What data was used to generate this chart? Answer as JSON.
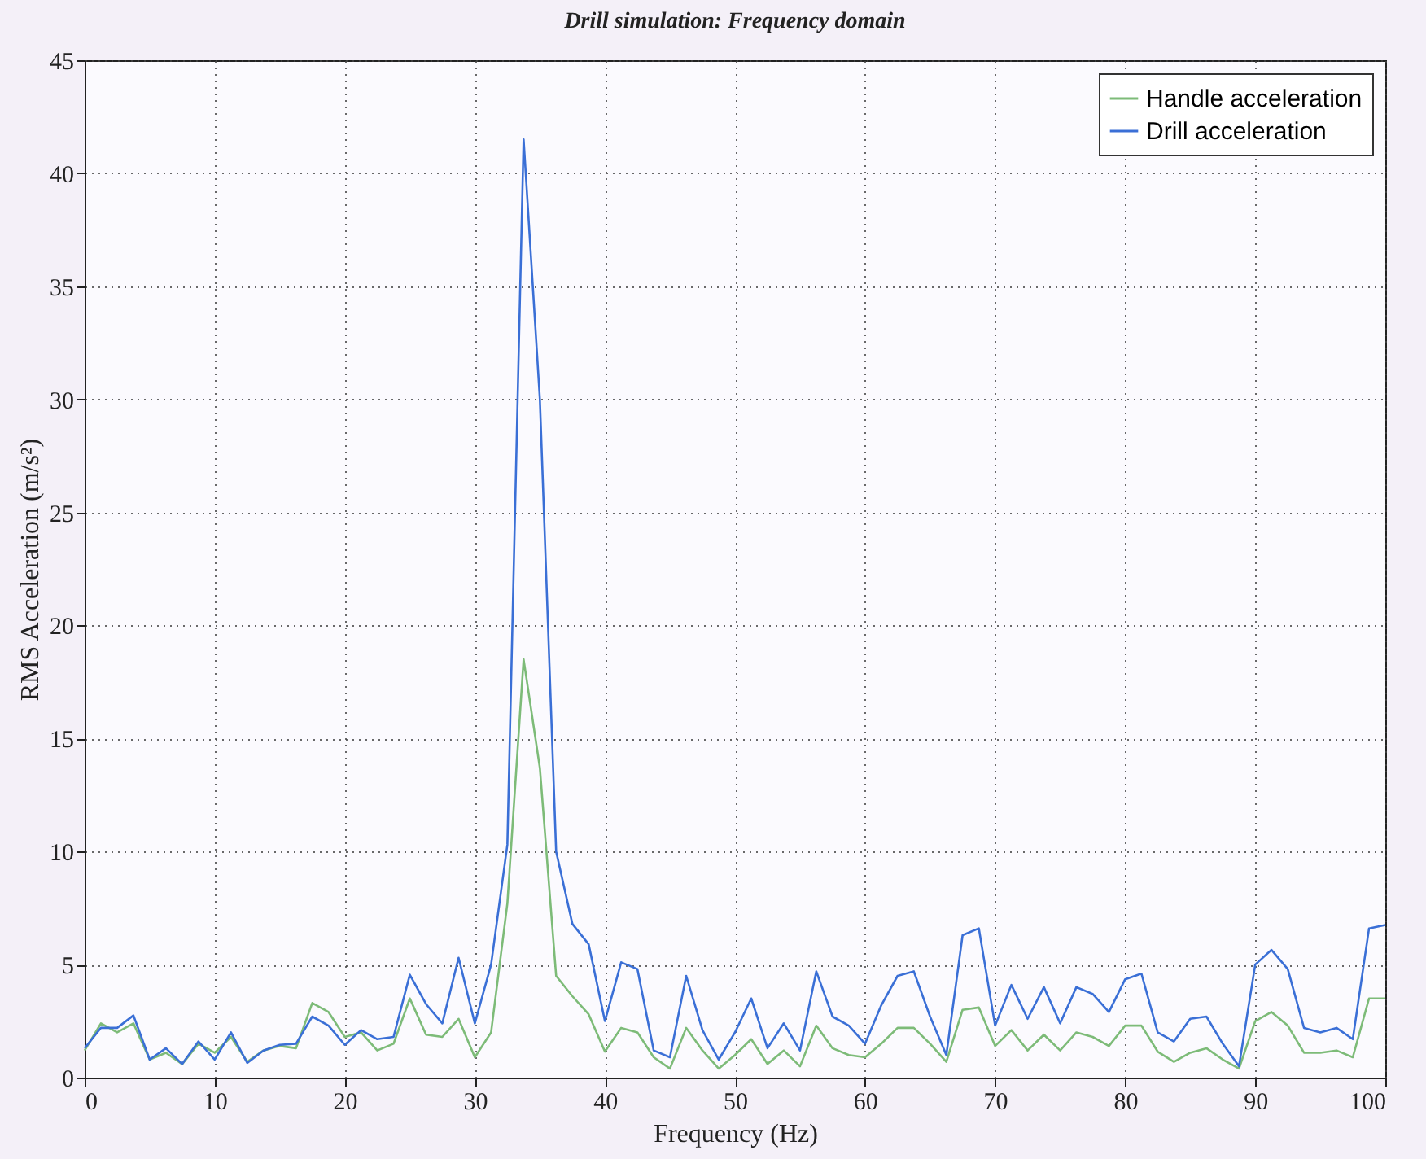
{
  "chart_data": {
    "type": "line",
    "title": "Drill simulation: Frequency domain",
    "xlabel": "Frequency (Hz)",
    "ylabel": "RMS Acceleration (m/s²)",
    "x": [
      0,
      1.25,
      2.5,
      3.75,
      5,
      6.25,
      7.5,
      8.75,
      10,
      11.25,
      12.5,
      13.75,
      15,
      16.25,
      17.5,
      18.75,
      20,
      21.25,
      22.5,
      23.75,
      25,
      26.25,
      27.5,
      28.75,
      30,
      31.25,
      32.5,
      33.75,
      35,
      36.25,
      37.5,
      38.75,
      40,
      41.25,
      42.5,
      43.75,
      45,
      46.25,
      47.5,
      48.75,
      50,
      51.25,
      52.5,
      53.75,
      55,
      56.25,
      57.5,
      58.75,
      60,
      61.25,
      62.5,
      63.75,
      65,
      66.25,
      67.5,
      68.75,
      70,
      71.25,
      72.5,
      73.75,
      75,
      76.25,
      77.5,
      78.75,
      80,
      81.25,
      82.5,
      83.75,
      85,
      86.25,
      87.5,
      88.75,
      90,
      91.25,
      92.5,
      93.75,
      95,
      96.25,
      97.5,
      98.75,
      100
    ],
    "series": [
      {
        "name": "Handle acceleration",
        "color": "#7dbb78",
        "values": [
          1.2,
          2.4,
          2.0,
          2.4,
          0.8,
          1.1,
          0.6,
          1.5,
          1.1,
          1.8,
          0.7,
          1.2,
          1.4,
          1.3,
          3.3,
          2.9,
          1.8,
          2.0,
          1.2,
          1.5,
          3.5,
          1.9,
          1.8,
          2.6,
          0.9,
          2.0,
          7.7,
          18.5,
          13.7,
          4.5,
          3.6,
          2.8,
          1.15,
          2.2,
          2.0,
          0.9,
          0.4,
          2.2,
          1.2,
          0.4,
          1.0,
          1.7,
          0.6,
          1.2,
          0.5,
          2.3,
          1.3,
          1.0,
          0.9,
          1.5,
          2.2,
          2.2,
          1.5,
          0.7,
          3.0,
          3.1,
          1.4,
          2.1,
          1.2,
          1.9,
          1.2,
          2.0,
          1.8,
          1.4,
          2.3,
          2.3,
          1.15,
          0.7,
          1.1,
          1.3,
          0.8,
          0.4,
          2.5,
          2.9,
          2.3,
          1.1,
          1.1,
          1.2,
          0.9,
          3.5,
          3.5
        ]
      },
      {
        "name": "Drill acceleration",
        "color": "#3a6fd6",
        "values": [
          1.3,
          2.2,
          2.2,
          2.75,
          0.8,
          1.3,
          0.6,
          1.6,
          0.8,
          2.0,
          0.65,
          1.2,
          1.45,
          1.5,
          2.7,
          2.3,
          1.45,
          2.1,
          1.7,
          1.8,
          4.55,
          3.25,
          2.4,
          5.3,
          2.4,
          5.0,
          10.3,
          41.5,
          30,
          10,
          6.8,
          5.9,
          2.5,
          5.1,
          4.8,
          1.2,
          0.9,
          4.5,
          2.1,
          0.8,
          2.0,
          3.5,
          1.3,
          2.4,
          1.2,
          4.7,
          2.7,
          2.3,
          1.5,
          3.2,
          4.5,
          4.7,
          2.7,
          1.0,
          6.3,
          6.6,
          2.3,
          4.1,
          2.6,
          4.0,
          2.4,
          4.0,
          3.7,
          2.9,
          4.35,
          4.6,
          2.0,
          1.6,
          2.6,
          2.7,
          1.5,
          0.5,
          5.0,
          5.65,
          4.8,
          2.2,
          2.0,
          2.2,
          1.7,
          6.6,
          6.75
        ]
      }
    ],
    "xlim": [
      0,
      100
    ],
    "xticks": [
      0,
      10,
      20,
      30,
      40,
      50,
      60,
      70,
      80,
      90,
      100
    ],
    "ylim": [
      0,
      45
    ],
    "yticks": [
      0,
      5,
      10,
      15,
      20,
      25,
      30,
      35,
      40,
      45
    ],
    "grid": true,
    "legend": "top right",
    "line_style": "solid",
    "marker": "none"
  }
}
